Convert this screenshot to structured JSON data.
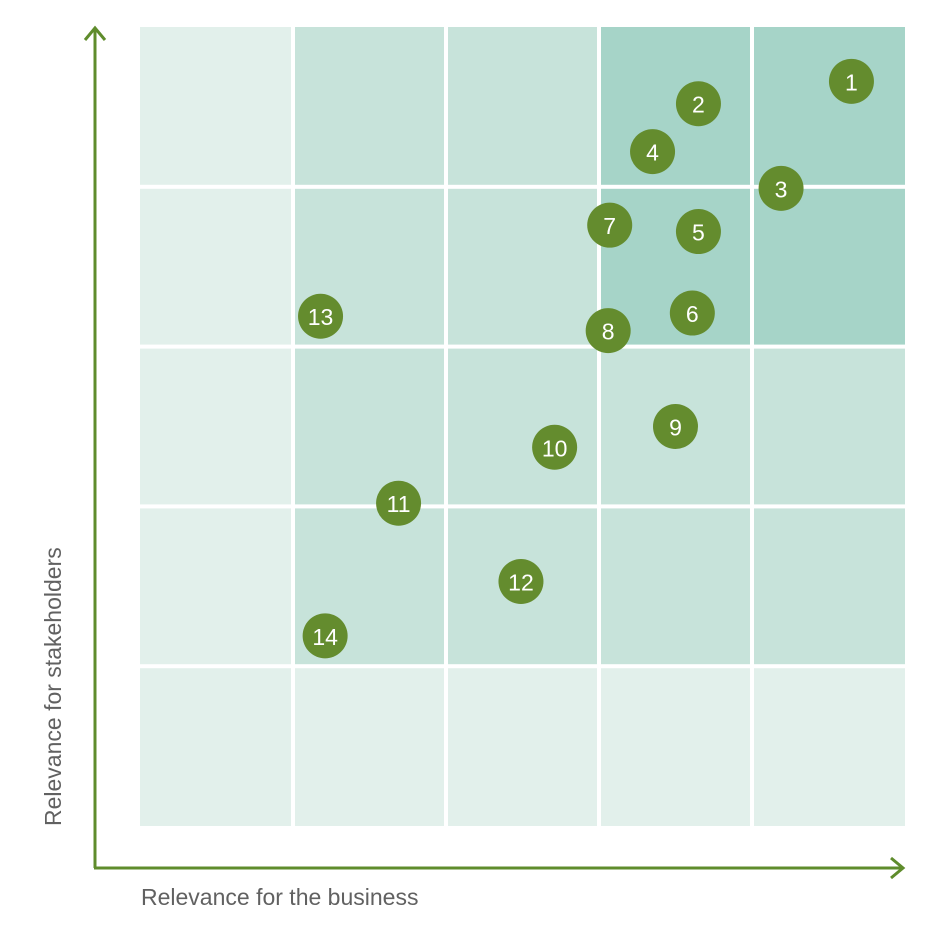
{
  "chart_data": {
    "type": "scatter",
    "title": "",
    "xlabel": "Relevance for the business",
    "ylabel": "Relevance for stakeholders",
    "xlim": [
      0,
      5
    ],
    "ylim": [
      0,
      5
    ],
    "grid": true,
    "cell_levels_top_to_bottom": [
      [
        0,
        1,
        1,
        2,
        2
      ],
      [
        0,
        1,
        1,
        2,
        2
      ],
      [
        0,
        1,
        1,
        1,
        1
      ],
      [
        0,
        1,
        1,
        1,
        1
      ],
      [
        0,
        0,
        0,
        0,
        0
      ]
    ],
    "points": [
      {
        "label": "1",
        "x": 4.65,
        "y": 4.66
      },
      {
        "label": "2",
        "x": 3.65,
        "y": 4.52
      },
      {
        "label": "3",
        "x": 4.19,
        "y": 3.99
      },
      {
        "label": "4",
        "x": 3.35,
        "y": 4.22
      },
      {
        "label": "5",
        "x": 3.65,
        "y": 3.72
      },
      {
        "label": "6",
        "x": 3.61,
        "y": 3.21
      },
      {
        "label": "7",
        "x": 3.07,
        "y": 3.76
      },
      {
        "label": "8",
        "x": 3.06,
        "y": 3.1
      },
      {
        "label": "9",
        "x": 3.5,
        "y": 2.5
      },
      {
        "label": "10",
        "x": 2.71,
        "y": 2.37
      },
      {
        "label": "11",
        "x": 1.69,
        "y": 2.02
      },
      {
        "label": "12",
        "x": 2.49,
        "y": 1.53
      },
      {
        "label": "13",
        "x": 1.18,
        "y": 3.19
      },
      {
        "label": "14",
        "x": 1.21,
        "y": 1.19
      }
    ]
  },
  "colors": {
    "axis": "#5f8c2c",
    "point": "#648c2e",
    "level0": "#e2f0eb",
    "level1": "#c7e3da",
    "level2": "#a6d4c8"
  }
}
